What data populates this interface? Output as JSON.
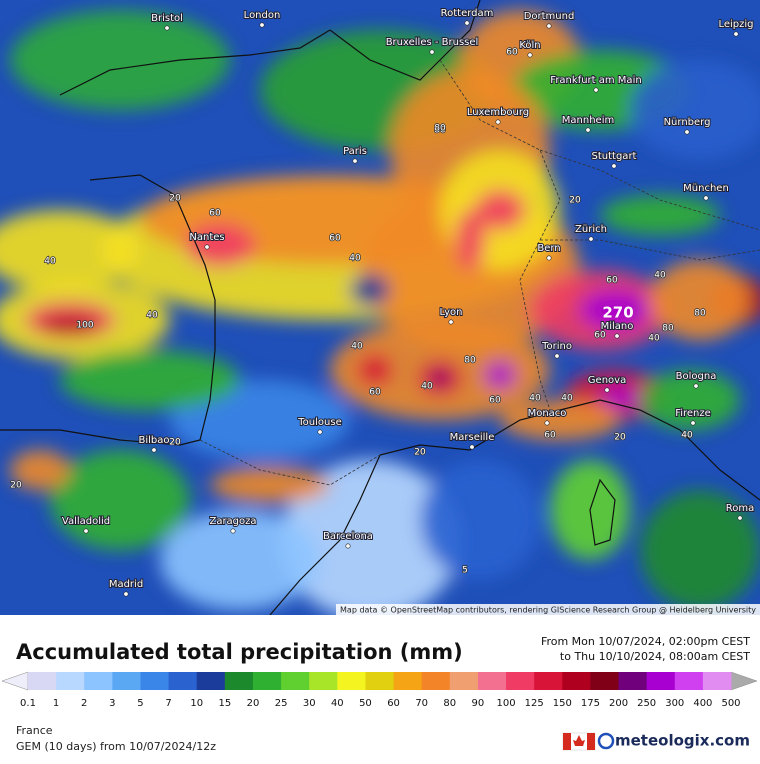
{
  "map": {
    "cities": [
      "Bristol",
      "London",
      "Rotterdam",
      "Dortmund",
      "Leipzig",
      "Bruxelles - Brussel",
      "Köln",
      "Frankfurt am Main",
      "Luxembourg",
      "Mannheim",
      "Nürnberg",
      "Paris",
      "Stuttgart",
      "München",
      "Nantes",
      "Zürich",
      "Bern",
      "Lyon",
      "Milano",
      "Torino",
      "Bologna",
      "Genova",
      "Monaco",
      "Firenze",
      "Toulouse",
      "Marseille",
      "Bilbao",
      "Roma",
      "Valladolid",
      "Zaragoza",
      "Barcelona",
      "Madrid"
    ],
    "contour_labels": [
      60,
      80,
      20,
      60,
      40,
      40,
      100,
      40,
      60,
      40,
      80,
      60,
      40,
      60,
      20,
      40,
      20,
      40,
      60,
      20,
      20,
      5,
      40,
      20,
      80,
      60,
      40,
      80,
      80,
      60,
      40
    ],
    "peak_label": 270,
    "attribution": "Map data © OpenStreetMap contributors, rendering GIScience Research Group @ Heidelberg University"
  },
  "legend": {
    "title": "Accumulated total precipitation (mm)",
    "date_from": "From Mon 10/07/2024, 02:00pm CEST",
    "date_to": "to Thu 10/10/2024, 08:00am CEST",
    "values": [
      0.1,
      1,
      2,
      3,
      5,
      7,
      10,
      15,
      20,
      25,
      30,
      40,
      50,
      60,
      70,
      80,
      90,
      100,
      125,
      150,
      175,
      200,
      250,
      300,
      400,
      500
    ],
    "colors": [
      "#d8d8f4",
      "#b8d8ff",
      "#8cc4ff",
      "#5aa8f4",
      "#3a86e8",
      "#2a62d0",
      "#1c3c9c",
      "#1c8a2c",
      "#30b030",
      "#60d030",
      "#a8e428",
      "#f4f420",
      "#e0d010",
      "#f4a414",
      "#f48428",
      "#f0a070",
      "#f47090",
      "#f03c64",
      "#d81438",
      "#b00020",
      "#800018",
      "#70007c",
      "#a800d0",
      "#d040f0",
      "#e08cf0"
    ]
  },
  "footer": {
    "region": "France",
    "model": "GEM (10 days)  from  10/07/2024/12z",
    "brand": "meteologix.com"
  }
}
